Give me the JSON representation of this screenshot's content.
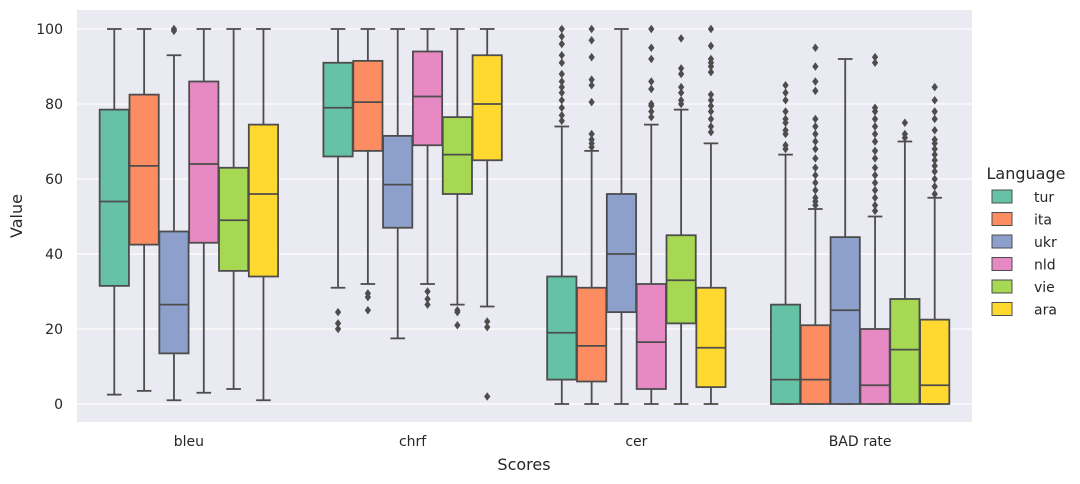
{
  "chart_data": {
    "type": "box",
    "title": "",
    "xlabel": "Scores",
    "ylabel": "Value",
    "ylim": [
      -5,
      105
    ],
    "yticks": [
      0,
      20,
      40,
      60,
      80,
      100
    ],
    "grid": true,
    "legend_title": "Language",
    "legend_position": "right",
    "categories": [
      "bleu",
      "chrf",
      "cer",
      "BAD rate"
    ],
    "series": [
      {
        "name": "tur",
        "color": "#66c2a5",
        "boxes": [
          {
            "q1": 31.5,
            "median": 54,
            "q3": 78.5,
            "whislo": 2.5,
            "whishi": 100,
            "fliers": []
          },
          {
            "q1": 66,
            "median": 79,
            "q3": 91,
            "whislo": 31,
            "whishi": 100,
            "fliers": [
              20,
              21.5,
              24.5
            ]
          },
          {
            "q1": 6.5,
            "median": 19,
            "q3": 34,
            "whislo": 0,
            "whishi": 74,
            "fliers": [
              75.5,
              77,
              79,
              81,
              83,
              84.5,
              86,
              88,
              91,
              93,
              96,
              98,
              100
            ]
          },
          {
            "q1": 0,
            "median": 6.5,
            "q3": 26.5,
            "whislo": 0,
            "whishi": 66.5,
            "fliers": [
              68,
              69,
              72,
              73,
              75,
              76,
              78,
              81,
              83,
              85
            ]
          }
        ]
      },
      {
        "name": "ita",
        "color": "#fc8d62",
        "boxes": [
          {
            "q1": 42.5,
            "median": 63.5,
            "q3": 82.5,
            "whislo": 3.5,
            "whishi": 100,
            "fliers": []
          },
          {
            "q1": 67.5,
            "median": 80.5,
            "q3": 91.5,
            "whislo": 32,
            "whishi": 100,
            "fliers": [
              25,
              28.5,
              29.5
            ]
          },
          {
            "q1": 6,
            "median": 15.5,
            "q3": 31,
            "whislo": 0,
            "whishi": 67.5,
            "fliers": [
              68.5,
              69.5,
              70.5,
              72,
              80.5,
              85,
              86.5,
              92.5,
              97,
              100
            ]
          },
          {
            "q1": 0,
            "median": 6.5,
            "q3": 21,
            "whislo": 0,
            "whishi": 52,
            "fliers": [
              53,
              54,
              55,
              57,
              59,
              61,
              63,
              65.5,
              68,
              70,
              72,
              74,
              76,
              83.5,
              86,
              90,
              95
            ]
          }
        ]
      },
      {
        "name": "ukr",
        "color": "#8da0cb",
        "boxes": [
          {
            "q1": 13.5,
            "median": 26.5,
            "q3": 46,
            "whislo": 1,
            "whishi": 93,
            "fliers": [
              99.5,
              100
            ]
          },
          {
            "q1": 47,
            "median": 58.5,
            "q3": 71.5,
            "whislo": 17.5,
            "whishi": 100,
            "fliers": []
          },
          {
            "q1": 24.5,
            "median": 40,
            "q3": 56,
            "whislo": 0,
            "whishi": 100,
            "fliers": []
          },
          {
            "q1": 0,
            "median": 25,
            "q3": 44.5,
            "whislo": 0,
            "whishi": 92,
            "fliers": []
          }
        ]
      },
      {
        "name": "nld",
        "color": "#e78ac3",
        "boxes": [
          {
            "q1": 43,
            "median": 64,
            "q3": 86,
            "whislo": 3,
            "whishi": 100,
            "fliers": []
          },
          {
            "q1": 69,
            "median": 82,
            "q3": 94,
            "whislo": 32,
            "whishi": 100,
            "fliers": [
              26.5,
              28,
              30
            ]
          },
          {
            "q1": 4,
            "median": 16.5,
            "q3": 32,
            "whislo": 0,
            "whishi": 74.5,
            "fliers": [
              76.5,
              78,
              79.5,
              80,
              84,
              86,
              92,
              95,
              100
            ]
          },
          {
            "q1": 0,
            "median": 5,
            "q3": 20,
            "whislo": 0,
            "whishi": 50,
            "fliers": [
              51.5,
              53,
              55,
              57,
              59,
              61,
              63,
              65.5,
              67.5,
              70,
              72,
              74,
              76,
              78,
              79,
              91,
              92.5
            ]
          }
        ]
      },
      {
        "name": "vie",
        "color": "#a6d854",
        "boxes": [
          {
            "q1": 35.5,
            "median": 49,
            "q3": 63,
            "whislo": 4,
            "whishi": 100,
            "fliers": []
          },
          {
            "q1": 56,
            "median": 66.5,
            "q3": 76.5,
            "whislo": 26.5,
            "whishi": 100,
            "fliers": [
              21,
              24.5,
              25
            ]
          },
          {
            "q1": 21.5,
            "median": 33,
            "q3": 45,
            "whislo": 0,
            "whishi": 78.5,
            "fliers": [
              80,
              81,
              83,
              84.5,
              88,
              89.5,
              97.5
            ]
          },
          {
            "q1": 0,
            "median": 14.5,
            "q3": 28,
            "whislo": 0,
            "whishi": 70,
            "fliers": [
              71,
              72,
              75
            ]
          }
        ]
      },
      {
        "name": "ara",
        "color": "#ffd92f",
        "boxes": [
          {
            "q1": 34,
            "median": 56,
            "q3": 74.5,
            "whislo": 1,
            "whishi": 100,
            "fliers": []
          },
          {
            "q1": 65,
            "median": 80,
            "q3": 93,
            "whislo": 26,
            "whishi": 100,
            "fliers": [
              2,
              20.5,
              22
            ]
          },
          {
            "q1": 4.5,
            "median": 15,
            "q3": 31,
            "whislo": 0,
            "whishi": 69.5,
            "fliers": [
              72.5,
              74,
              76,
              78,
              79.5,
              81,
              82.5,
              88.5,
              90,
              91,
              92,
              95.5,
              100
            ]
          },
          {
            "q1": 0,
            "median": 5,
            "q3": 22.5,
            "whislo": 0,
            "whishi": 55,
            "fliers": [
              56,
              58,
              60,
              62,
              63.5,
              65,
              66.5,
              68,
              69.5,
              70.5,
              73,
              76,
              78,
              81,
              84.5
            ]
          }
        ]
      }
    ]
  }
}
